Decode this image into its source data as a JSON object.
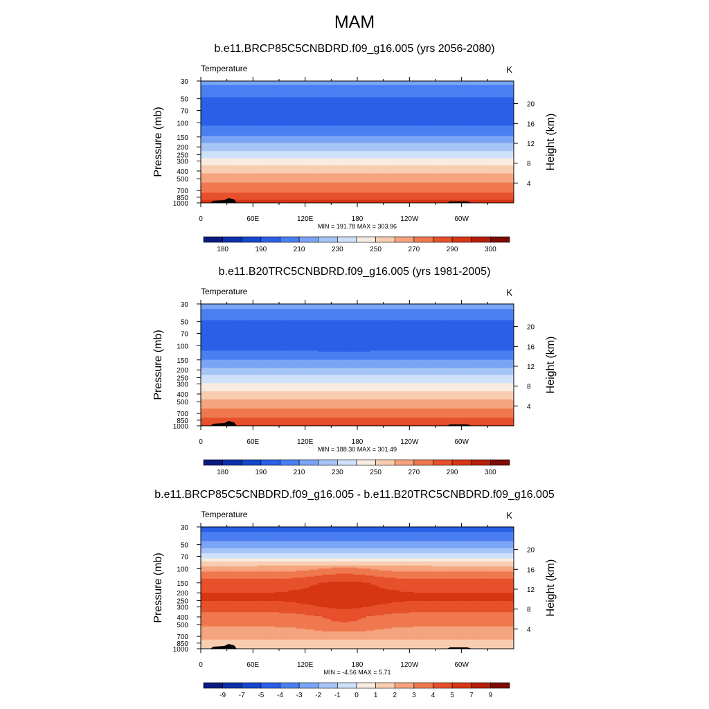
{
  "figure_title": "MAM",
  "panels": [
    {
      "title": "b.e11.BRCP85C5CNBDRD.f09_g16.005 (yrs 2056-2080)",
      "variable": "Temperature",
      "units": "K",
      "stats": "MIN = 191.78  MAX = 303.96",
      "colorbar_labels": [
        "180",
        "190",
        "210",
        "230",
        "250",
        "270",
        "290",
        "300"
      ]
    },
    {
      "title": "b.e11.B20TRC5CNBDRD.f09_g16.005 (yrs 1981-2005)",
      "variable": "Temperature",
      "units": "K",
      "stats": "MIN = 188.30  MAX = 301.49",
      "colorbar_labels": [
        "180",
        "190",
        "210",
        "230",
        "250",
        "270",
        "290",
        "300"
      ]
    },
    {
      "title": "b.e11.BRCP85C5CNBDRD.f09_g16.005 - b.e11.B20TRC5CNBDRD.f09_g16.005",
      "variable": "Temperature",
      "units": "K",
      "stats": "MIN =  -4.56  MAX =   5.71",
      "colorbar_labels": [
        "-9",
        "-7",
        "-5",
        "-4",
        "-3",
        "-2",
        "-1",
        "0",
        "1",
        "2",
        "3",
        "4",
        "5",
        "7",
        "9"
      ]
    }
  ],
  "chart_data": [
    {
      "type": "heatmap",
      "title": "b.e11.BRCP85C5CNBDRD.f09_g16.005 (yrs 2056-2080)",
      "ylabel": "Pressure (mb)",
      "y2label": "Height (km)",
      "x_ticks": [
        "0",
        "60E",
        "120E",
        "180",
        "120W",
        "60W"
      ],
      "x_range_deg": [
        0,
        360
      ],
      "y_ticks_mb": [
        30,
        50,
        70,
        100,
        150,
        200,
        250,
        300,
        400,
        500,
        700,
        850,
        1000
      ],
      "y_range_mb": [
        30,
        1000
      ],
      "y_scale": "log",
      "y2_ticks_km": [
        4,
        8,
        12,
        16,
        20
      ],
      "levels": [
        180,
        185,
        190,
        200,
        210,
        220,
        230,
        240,
        250,
        260,
        270,
        280,
        290,
        295,
        300
      ],
      "colors": [
        "#0a1a80",
        "#0d2fa8",
        "#1546cc",
        "#2a60e8",
        "#4a7ff2",
        "#7aa4f5",
        "#a7c4f7",
        "#cfe0fa",
        "#f8ece0",
        "#f8cdb0",
        "#f4a47e",
        "#ef784f",
        "#e6502b",
        "#d63613",
        "#b41f0a",
        "#7e0a04"
      ],
      "profile_mb": [
        30,
        40,
        50,
        70,
        100,
        120,
        150,
        175,
        200,
        230,
        250,
        280,
        300,
        350,
        400,
        450,
        500,
        600,
        700,
        800,
        850,
        925,
        1000
      ],
      "profile_K": [
        212,
        206,
        198,
        197,
        198,
        203,
        212,
        219,
        224,
        232,
        236,
        240,
        245,
        251,
        257,
        262,
        266,
        273,
        278,
        283,
        285,
        290,
        293
      ],
      "minimum": 191.78,
      "maximum": 303.96
    },
    {
      "type": "heatmap",
      "title": "b.e11.B20TRC5CNBDRD.f09_g16.005 (yrs 1981-2005)",
      "ylabel": "Pressure (mb)",
      "y2label": "Height (km)",
      "x_ticks": [
        "0",
        "60E",
        "120E",
        "180",
        "120W",
        "60W"
      ],
      "x_range_deg": [
        0,
        360
      ],
      "y_ticks_mb": [
        30,
        50,
        70,
        100,
        150,
        200,
        250,
        300,
        400,
        500,
        700,
        850,
        1000
      ],
      "y_range_mb": [
        30,
        1000
      ],
      "y_scale": "log",
      "y2_ticks_km": [
        4,
        8,
        12,
        16,
        20
      ],
      "levels": [
        180,
        185,
        190,
        200,
        210,
        220,
        230,
        240,
        250,
        260,
        270,
        280,
        290,
        295,
        300
      ],
      "colors": [
        "#0a1a80",
        "#0d2fa8",
        "#1546cc",
        "#2a60e8",
        "#4a7ff2",
        "#7aa4f5",
        "#a7c4f7",
        "#cfe0fa",
        "#f8ece0",
        "#f8cdb0",
        "#f4a47e",
        "#ef784f",
        "#e6502b",
        "#d63613",
        "#b41f0a",
        "#7e0a04"
      ],
      "profile_mb": [
        30,
        40,
        50,
        70,
        100,
        120,
        150,
        175,
        200,
        230,
        250,
        280,
        300,
        350,
        400,
        450,
        500,
        600,
        700,
        800,
        850,
        925,
        1000
      ],
      "profile_K": [
        213,
        207,
        198,
        196,
        195,
        201,
        210,
        217,
        222,
        230,
        234,
        238,
        242,
        248,
        254,
        259,
        263,
        270,
        275,
        281,
        283,
        288,
        291
      ],
      "minimum": 188.3,
      "maximum": 301.49
    },
    {
      "type": "heatmap",
      "title": "b.e11.BRCP85C5CNBDRD.f09_g16.005 - b.e11.B20TRC5CNBDRD.f09_g16.005",
      "ylabel": "Pressure (mb)",
      "y2label": "Height (km)",
      "x_ticks": [
        "0",
        "60E",
        "120E",
        "180",
        "120W",
        "60W"
      ],
      "x_range_deg": [
        0,
        360
      ],
      "y_ticks_mb": [
        30,
        50,
        70,
        100,
        150,
        200,
        250,
        300,
        400,
        500,
        700,
        850,
        1000
      ],
      "y_range_mb": [
        30,
        1000
      ],
      "y_scale": "log",
      "y2_ticks_km": [
        4,
        8,
        12,
        16,
        20
      ],
      "levels": [
        -9,
        -7,
        -5,
        -4,
        -3,
        -2,
        -1,
        0,
        1,
        2,
        3,
        4,
        5,
        7,
        9
      ],
      "colors": [
        "#0a1a80",
        "#0d2fa8",
        "#1546cc",
        "#2a60e8",
        "#4a7ff2",
        "#7aa4f5",
        "#a7c4f7",
        "#cfe0fa",
        "#f8ece0",
        "#f8cdb0",
        "#f4a47e",
        "#ef784f",
        "#e6502b",
        "#d63613",
        "#b41f0a",
        "#7e0a04"
      ],
      "profile_mb": [
        30,
        40,
        50,
        60,
        70,
        85,
        100,
        120,
        150,
        200,
        250,
        300,
        400,
        500,
        600,
        700,
        850,
        1000
      ],
      "profile_K": [
        -4.5,
        -3.5,
        -2.5,
        -1.5,
        -0.5,
        1.5,
        2.5,
        3.5,
        4.5,
        5.0,
        5.0,
        4.5,
        3.5,
        3.2,
        2.5,
        2.2,
        1.8,
        1.5
      ],
      "minimum": -4.56,
      "maximum": 5.71
    }
  ]
}
